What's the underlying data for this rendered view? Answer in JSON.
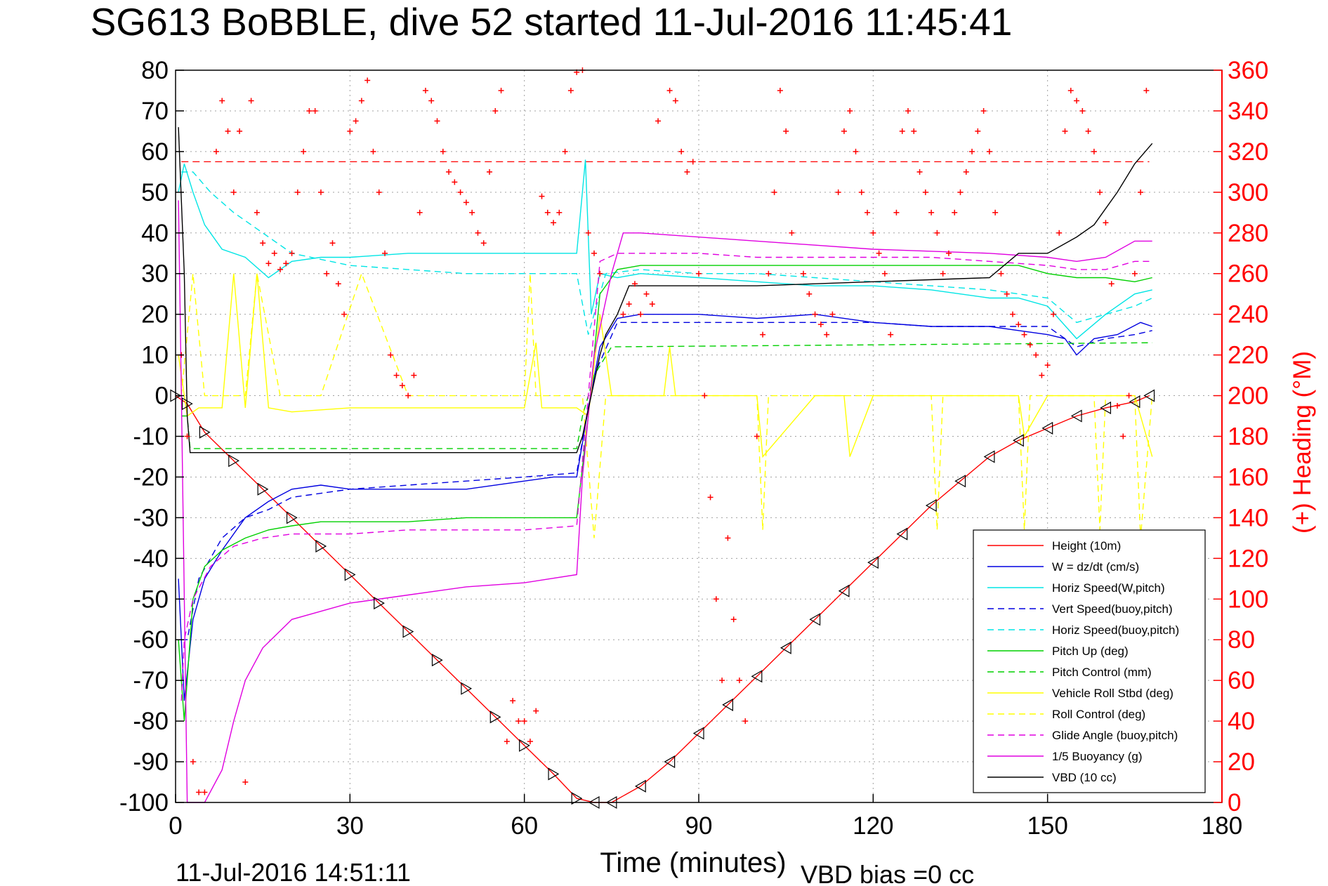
{
  "chart_data": {
    "type": "line",
    "title": "SG613 BoBBLE, dive 52 started 11-Jul-2016 11:45:41",
    "xlabel": "Time (minutes)",
    "ylabel_right": "(+) Heading (°M)",
    "footer_left": "11-Jul-2016 14:51:11",
    "footer_right": "VBD bias =0 cc",
    "xlim": [
      0,
      180
    ],
    "ylim": [
      -100,
      80
    ],
    "ylim_right": [
      0,
      360
    ],
    "xticks": [
      "0",
      "30",
      "60",
      "90",
      "120",
      "150",
      "180"
    ],
    "yticks": [
      "80",
      "70",
      "60",
      "50",
      "40",
      "30",
      "20",
      "10",
      "0",
      "-10",
      "-20",
      "-30",
      "-40",
      "-50",
      "-60",
      "-70",
      "-80",
      "-90",
      "-100"
    ],
    "yticks_right": [
      "360",
      "340",
      "320",
      "300",
      "280",
      "260",
      "240",
      "220",
      "200",
      "180",
      "160",
      "140",
      "120",
      "100",
      "80",
      "60",
      "40",
      "20",
      "0"
    ],
    "grid": true,
    "legend_position": "bottom-right",
    "colors": {
      "red": "#ff0000",
      "blue": "#0000e0",
      "cyan": "#00e5e5",
      "green": "#00d000",
      "yellow": "#ffff00",
      "magenta": "#e000e0",
      "black": "#000000",
      "grid": "#a0a0a0"
    },
    "series": [
      {
        "name": "Height (10m)",
        "color": "red",
        "style": "solid",
        "x": [
          0,
          2,
          5,
          10,
          15,
          20,
          25,
          30,
          35,
          40,
          45,
          50,
          55,
          60,
          65,
          69,
          72,
          75,
          80,
          85,
          90,
          95,
          100,
          105,
          110,
          115,
          120,
          125,
          130,
          135,
          140,
          145,
          150,
          155,
          160,
          165,
          167.5
        ],
        "y": [
          0,
          -2,
          -9,
          -16,
          -23,
          -30,
          -37,
          -44,
          -51,
          -58,
          -65,
          -72,
          -79,
          -86,
          -93,
          -99,
          -100,
          -100,
          -96,
          -90,
          -83,
          -76,
          -69,
          -62,
          -55,
          -48,
          -41,
          -34,
          -27,
          -21,
          -15,
          -11,
          -8,
          -5,
          -3,
          -1.5,
          0
        ]
      },
      {
        "name": "W = dz/dt (cm/s)",
        "color": "blue",
        "style": "solid",
        "x": [
          0.5,
          1.5,
          3,
          5,
          8,
          12,
          16,
          20,
          25,
          30,
          40,
          50,
          60,
          65,
          69,
          71,
          73,
          76,
          80,
          90,
          100,
          110,
          120,
          130,
          140,
          145,
          150,
          153,
          155,
          158,
          162,
          166,
          168
        ],
        "y": [
          -45,
          -75,
          -55,
          -45,
          -38,
          -30,
          -26,
          -23,
          -22,
          -23,
          -23,
          -23,
          -21,
          -20,
          -20,
          -3,
          12,
          19,
          20,
          20,
          19,
          20,
          18,
          17,
          17,
          16,
          15,
          14,
          10,
          14,
          15,
          18,
          17
        ]
      },
      {
        "name": "Horiz Speed(W,pitch)",
        "color": "cyan",
        "style": "solid",
        "x": [
          0.5,
          1.5,
          3,
          5,
          8,
          12,
          16,
          20,
          25,
          30,
          40,
          50,
          60,
          65,
          69,
          70.5,
          71.5,
          73,
          76,
          80,
          90,
          100,
          110,
          120,
          130,
          140,
          145,
          150,
          155,
          160,
          165,
          168
        ],
        "y": [
          50,
          57,
          50,
          42,
          36,
          34,
          29,
          33,
          34,
          34,
          35,
          35,
          35,
          35,
          35,
          58,
          20,
          30,
          29,
          30,
          29,
          28,
          27,
          27,
          26,
          24,
          24,
          22,
          14,
          20,
          25,
          26
        ]
      },
      {
        "name": "Vert Speed(buoy,pitch)",
        "color": "blue",
        "style": "dashed",
        "x": [
          1,
          2,
          4,
          8,
          12,
          16,
          20,
          30,
          40,
          50,
          60,
          69,
          72,
          76,
          80,
          90,
          100,
          110,
          120,
          130,
          140,
          150,
          155,
          160,
          165,
          168
        ],
        "y": [
          -60,
          -60,
          -45,
          -35,
          -30,
          -28,
          -25,
          -23,
          -22,
          -21,
          -20,
          -19,
          5,
          18,
          18,
          18,
          18,
          18,
          18,
          17,
          17,
          17,
          12,
          14,
          15,
          16
        ]
      },
      {
        "name": "Horiz Speed(buoy,pitch)",
        "color": "cyan",
        "style": "dashed",
        "x": [
          1,
          3,
          6,
          10,
          15,
          20,
          30,
          40,
          50,
          60,
          69,
          71,
          74,
          80,
          90,
          100,
          110,
          120,
          130,
          140,
          150,
          155,
          160,
          165,
          168
        ],
        "y": [
          55,
          55,
          50,
          45,
          40,
          35,
          32,
          31,
          30,
          30,
          30,
          15,
          30,
          31,
          30,
          30,
          29,
          28,
          27,
          26,
          24,
          18,
          20,
          22,
          24
        ]
      },
      {
        "name": "Pitch Up (deg)",
        "color": "green",
        "style": "solid",
        "x": [
          0.5,
          1.5,
          3,
          5,
          8,
          12,
          16,
          20,
          25,
          30,
          40,
          50,
          60,
          65,
          69,
          71,
          73,
          76,
          80,
          90,
          100,
          110,
          120,
          130,
          140,
          145,
          150,
          155,
          160,
          165,
          168
        ],
        "y": [
          -60,
          -80,
          -50,
          -42,
          -38,
          -35,
          -33,
          -32,
          -31,
          -31,
          -31,
          -30,
          -30,
          -30,
          -30,
          -5,
          25,
          31,
          32,
          32,
          32,
          32,
          32,
          32,
          32,
          32,
          30,
          29,
          29,
          28,
          29
        ]
      },
      {
        "name": "Pitch Control (mm)",
        "color": "green",
        "style": "dashed",
        "x": [
          1,
          2,
          2.5,
          69,
          70,
          72,
          75,
          168
        ],
        "y": [
          -5,
          -5,
          -13,
          -13,
          -5,
          5,
          12,
          13
        ]
      },
      {
        "name": "Vehicle Roll Stbd (deg)",
        "color": "yellow",
        "style": "solid",
        "x": [
          0.5,
          2,
          4,
          8,
          10,
          12,
          14,
          16,
          20,
          30,
          40,
          50,
          60,
          62,
          63,
          65,
          69,
          71,
          73,
          75,
          77,
          80,
          84,
          85,
          86,
          90,
          95,
          98,
          100,
          101,
          110,
          115,
          116,
          120,
          130,
          140,
          145,
          146,
          150,
          155,
          160,
          165,
          168
        ],
        "y": [
          10,
          -5,
          -3,
          -3,
          30,
          -3,
          30,
          -3,
          -4,
          -3,
          -3,
          -3,
          -3,
          13,
          -3,
          -3,
          -3,
          -5,
          20,
          0,
          0,
          0,
          0,
          12,
          0,
          0,
          0,
          0,
          0,
          -15,
          0,
          0,
          -15,
          0,
          0,
          0,
          0,
          -10,
          0,
          0,
          0,
          0,
          -15
        ]
      },
      {
        "name": "Roll Control (deg)",
        "color": "yellow",
        "style": "dashed",
        "x": [
          1,
          3,
          5,
          8,
          12,
          14,
          18,
          25,
          32,
          40,
          50,
          60,
          61,
          62,
          70,
          72,
          74,
          76,
          100,
          101,
          102,
          130,
          131,
          132,
          145,
          146,
          147,
          158,
          159,
          160,
          165,
          166,
          168
        ],
        "y": [
          0,
          30,
          0,
          0,
          0,
          30,
          0,
          0,
          30,
          0,
          0,
          0,
          30,
          0,
          0,
          -35,
          0,
          0,
          0,
          -33,
          0,
          0,
          -33,
          0,
          0,
          -33,
          0,
          0,
          -33,
          0,
          0,
          -35,
          0
        ]
      },
      {
        "name": "Glide Angle (buoy,pitch)",
        "color": "magenta",
        "style": "dashed",
        "x": [
          1,
          1.5,
          3,
          6,
          10,
          15,
          20,
          30,
          40,
          50,
          60,
          69,
          71,
          73,
          76,
          80,
          90,
          100,
          110,
          120,
          130,
          140,
          150,
          155,
          160,
          165,
          168
        ],
        "y": [
          -75,
          -60,
          -50,
          -42,
          -37,
          -35,
          -34,
          -34,
          -33,
          -33,
          -33,
          -32,
          0,
          33,
          35,
          35,
          35,
          34,
          34,
          34,
          34,
          33,
          32,
          31,
          31,
          33,
          33
        ]
      },
      {
        "name": "1/5 Buoyancy (g)",
        "color": "magenta",
        "style": "solid",
        "x": [
          0.5,
          1,
          2,
          2.5,
          5,
          8,
          10,
          12,
          15,
          20,
          25,
          30,
          40,
          50,
          60,
          69,
          70,
          72,
          75,
          77,
          80,
          100,
          120,
          140,
          150,
          155,
          160,
          165,
          168
        ],
        "y": [
          48,
          0,
          -100,
          -100,
          -100,
          -92,
          -80,
          -70,
          -62,
          -55,
          -53,
          -51,
          -49,
          -47,
          -46,
          -44,
          -20,
          10,
          30,
          40,
          40,
          38,
          36,
          35,
          34,
          33,
          34,
          38,
          38
        ]
      },
      {
        "name": "VBD (10 cc)",
        "color": "black",
        "style": "solid",
        "x": [
          0.5,
          1.5,
          2,
          2.5,
          69,
          70,
          73,
          74,
          76,
          78,
          100,
          120,
          140,
          145,
          150,
          155,
          158,
          162,
          165,
          168
        ],
        "y": [
          66,
          30,
          -5,
          -14,
          -14,
          -10,
          10,
          15,
          20,
          27,
          27,
          28,
          29,
          35,
          35,
          39,
          42,
          50,
          57,
          62
        ]
      },
      {
        "name": "Heading",
        "color": "red",
        "style": "markers",
        "x": [
          1,
          2,
          3,
          4,
          5,
          7,
          8,
          9,
          10,
          11,
          12,
          13,
          14,
          15,
          16,
          17,
          18,
          19,
          20,
          21,
          22,
          23,
          24,
          25,
          26,
          27,
          28,
          29,
          30,
          31,
          32,
          33,
          34,
          35,
          36,
          37,
          38,
          39,
          40,
          41,
          42,
          43,
          44,
          45,
          46,
          47,
          48,
          49,
          50,
          51,
          52,
          53,
          54,
          55,
          56,
          57,
          58,
          59,
          60,
          61,
          62,
          63,
          64,
          65,
          66,
          67,
          68,
          69,
          70,
          71,
          72,
          73,
          77,
          78,
          79,
          80,
          81,
          82,
          83,
          85,
          86,
          87,
          88,
          89,
          90,
          91,
          92,
          93,
          94,
          95,
          96,
          97,
          98,
          100,
          101,
          102,
          103,
          104,
          105,
          106,
          108,
          109,
          110,
          111,
          112,
          113,
          114,
          115,
          116,
          117,
          118,
          119,
          120,
          121,
          122,
          123,
          124,
          125,
          126,
          127,
          128,
          129,
          130,
          131,
          132,
          133,
          134,
          135,
          136,
          137,
          138,
          139,
          140,
          141,
          142,
          143,
          144,
          145,
          146,
          147,
          148,
          149,
          150,
          151,
          152,
          153,
          154,
          155,
          156,
          157,
          158,
          159,
          160,
          161,
          162,
          163,
          164,
          165,
          166,
          167
        ],
        "y": [
          220,
          180,
          20,
          5,
          5,
          320,
          345,
          330,
          300,
          330,
          10,
          345,
          290,
          275,
          265,
          270,
          262,
          265,
          270,
          300,
          320,
          340,
          340,
          300,
          260,
          275,
          255,
          240,
          330,
          335,
          345,
          355,
          320,
          300,
          270,
          220,
          210,
          205,
          200,
          210,
          290,
          350,
          345,
          335,
          320,
          310,
          305,
          300,
          295,
          290,
          280,
          275,
          310,
          340,
          350,
          30,
          50,
          40,
          40,
          30,
          45,
          298,
          290,
          285,
          290,
          320,
          350,
          359,
          360,
          280,
          270,
          260,
          240,
          245,
          255,
          240,
          250,
          245,
          335,
          350,
          345,
          320,
          310,
          315,
          260,
          200,
          150,
          100,
          60,
          130,
          90,
          60,
          40,
          180,
          230,
          260,
          300,
          350,
          330,
          280,
          260,
          250,
          240,
          235,
          230,
          240,
          300,
          330,
          340,
          320,
          300,
          290,
          280,
          270,
          260,
          230,
          290,
          330,
          340,
          330,
          310,
          300,
          290,
          280,
          260,
          270,
          290,
          300,
          310,
          320,
          330,
          340,
          320,
          290,
          260,
          250,
          240,
          235,
          230,
          225,
          220,
          210,
          215,
          240,
          280,
          330,
          350,
          345,
          340,
          330,
          320,
          300,
          285,
          255,
          195,
          180,
          200,
          260,
          300,
          350
        ]
      }
    ]
  }
}
